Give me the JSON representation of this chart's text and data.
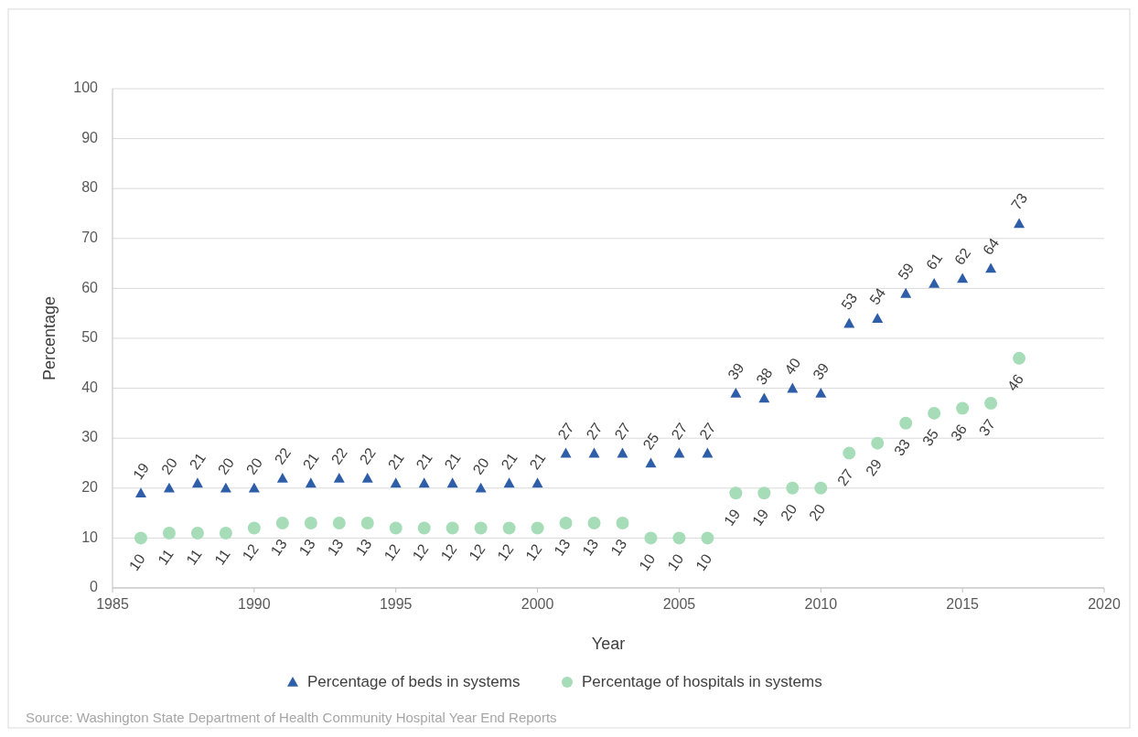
{
  "chart_data": {
    "type": "scatter",
    "xlabel": "Year",
    "ylabel": "Percentage",
    "x": [
      1986,
      1987,
      1988,
      1989,
      1990,
      1991,
      1992,
      1993,
      1994,
      1995,
      1996,
      1997,
      1998,
      1999,
      2000,
      2001,
      2002,
      2003,
      2004,
      2005,
      2006,
      2007,
      2008,
      2009,
      2010,
      2011,
      2012,
      2013,
      2014,
      2015,
      2016,
      2017
    ],
    "series": [
      {
        "name": "Percentage of beds in systems",
        "color": "#2f5ea8",
        "marker": "triangle",
        "values": [
          19,
          20,
          21,
          20,
          20,
          22,
          21,
          22,
          22,
          21,
          21,
          21,
          20,
          21,
          21,
          27,
          27,
          27,
          25,
          27,
          27,
          39,
          38,
          40,
          39,
          53,
          54,
          59,
          61,
          62,
          64,
          73
        ]
      },
      {
        "name": "Percentage of hospitals in systems",
        "color": "#a6dcb8",
        "marker": "circle",
        "values": [
          10,
          11,
          11,
          11,
          12,
          13,
          13,
          13,
          13,
          12,
          12,
          12,
          12,
          12,
          12,
          13,
          13,
          13,
          10,
          10,
          10,
          19,
          19,
          20,
          20,
          27,
          29,
          33,
          35,
          36,
          37,
          46
        ]
      }
    ],
    "xlim": [
      1985,
      2020
    ],
    "xticks": [
      1985,
      1990,
      1995,
      2000,
      2005,
      2010,
      2015,
      2020
    ],
    "ylim": [
      0,
      100
    ],
    "yticks": [
      0,
      10,
      20,
      30,
      40,
      50,
      60,
      70,
      80,
      90,
      100
    ],
    "grid": "y",
    "legend": "bottom",
    "data_labels": true,
    "annotations": [
      "Source: Washington State Department of Health Community Hospital Year End Reports"
    ]
  }
}
